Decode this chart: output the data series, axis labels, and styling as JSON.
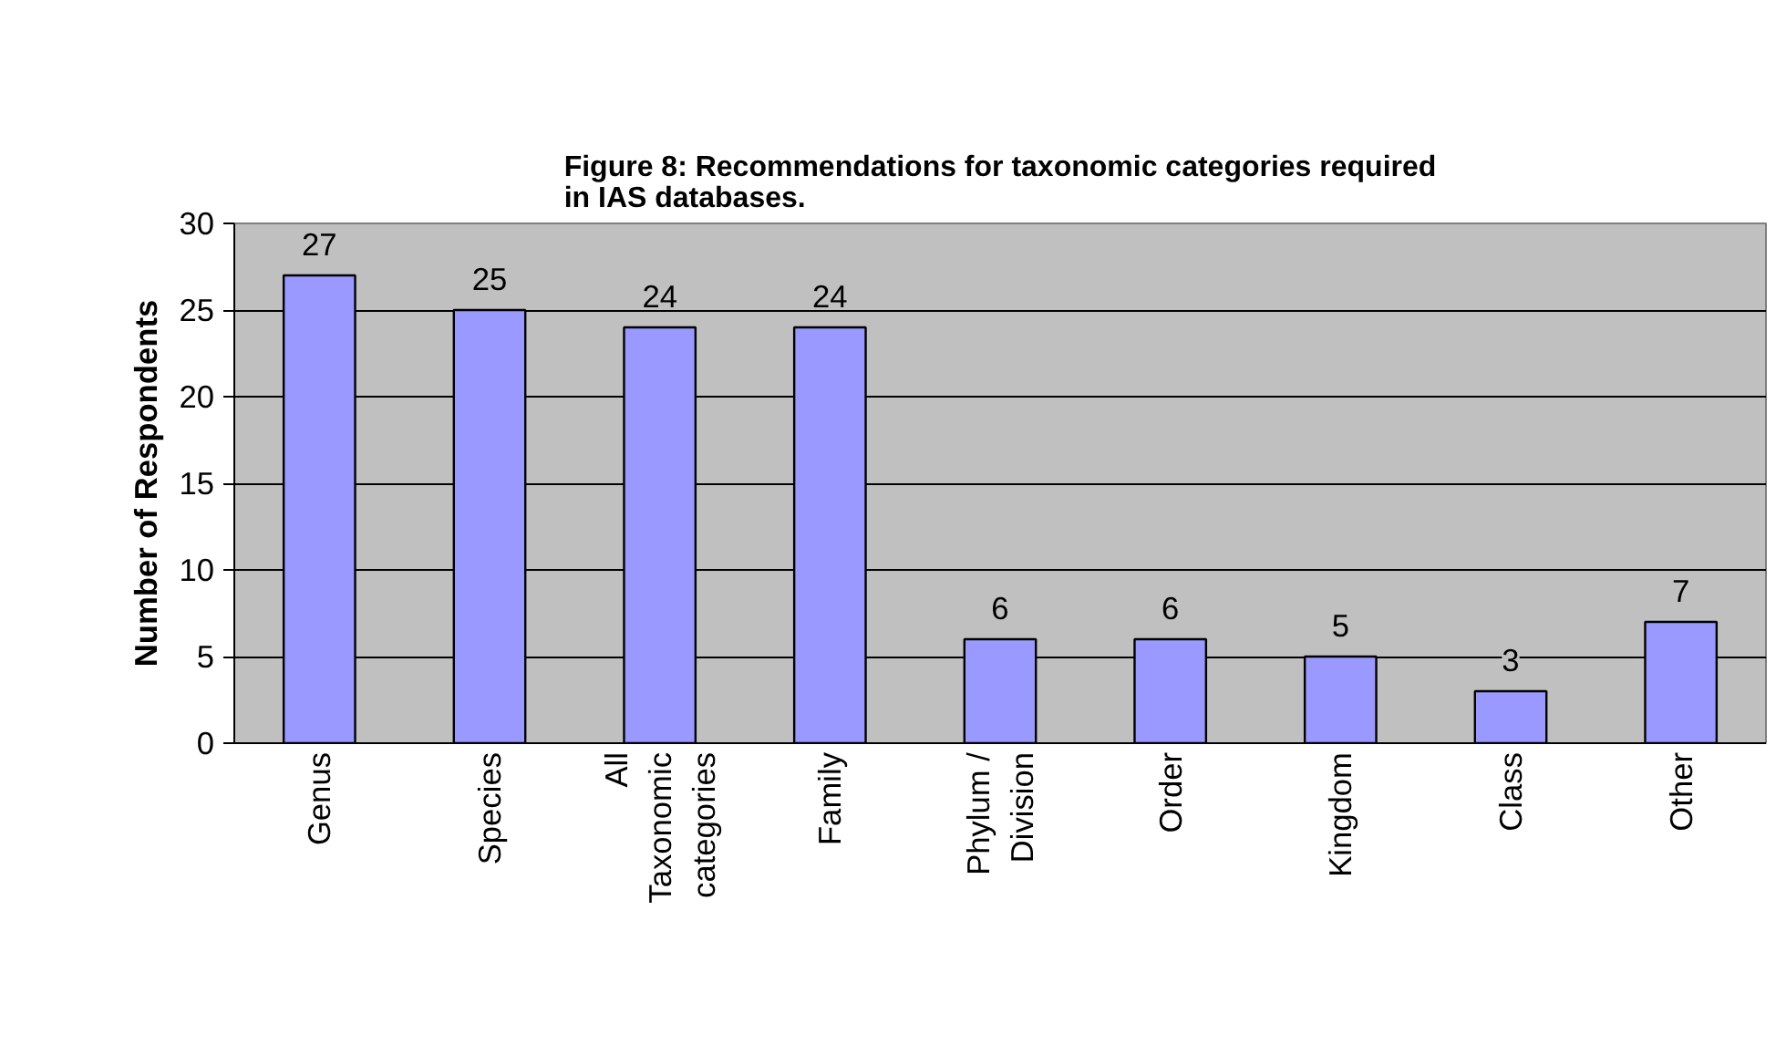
{
  "chart_data": {
    "type": "bar",
    "title": "Figure 8: Recommendations for taxonomic categories required in IAS databases.",
    "ylabel": "Number of Respondents",
    "categories": [
      "Genus",
      "Species",
      "All Taxonomic categories",
      "Family",
      "Phylum / Division",
      "Order",
      "Kingdom",
      "Class",
      "Other"
    ],
    "values": [
      27,
      25,
      24,
      24,
      6,
      6,
      5,
      3,
      7
    ],
    "color": "#9999ff",
    "ylim": [
      0,
      30
    ],
    "yticks": [
      0,
      5,
      10,
      15,
      20,
      25,
      30
    ],
    "grid": "y",
    "data_labels": true
  }
}
